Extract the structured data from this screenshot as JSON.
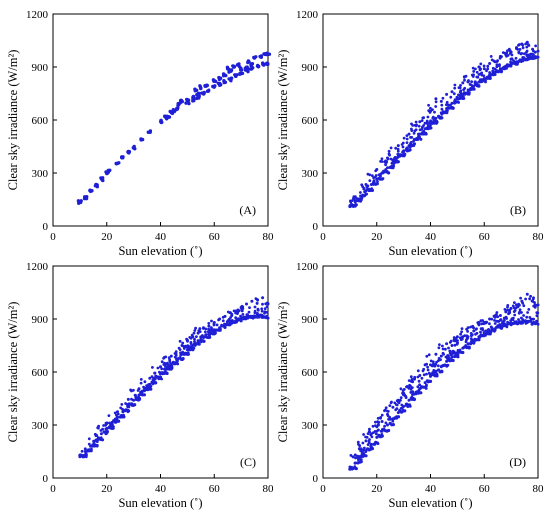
{
  "figure": {
    "marker_color": "#1f1fd6",
    "axis_color": "#000000",
    "background": "#ffffff"
  },
  "chart_data": [
    {
      "type": "scatter",
      "panel_label": "(A)",
      "xlabel": "Sun elevation (˚)",
      "ylabel": "Clear sky irradiance (W/m²)",
      "xlim": [
        0,
        80
      ],
      "ylim": [
        0,
        1200
      ],
      "xticks": [
        "0",
        "20",
        "40",
        "60",
        "80"
      ],
      "yticks": [
        "0",
        "300",
        "600",
        "900",
        "1200"
      ],
      "grid": false,
      "legend": "none",
      "pattern": "loops",
      "points": [
        [
          10,
          135
        ],
        [
          12,
          160
        ],
        [
          14,
          195
        ],
        [
          16,
          230
        ],
        [
          18,
          265
        ],
        [
          20,
          300
        ],
        [
          21,
          315
        ],
        [
          24,
          355
        ],
        [
          26,
          385
        ],
        [
          28,
          415
        ],
        [
          30,
          445
        ],
        [
          33,
          490
        ],
        [
          36,
          530
        ],
        [
          40,
          590
        ],
        [
          42,
          615
        ],
        [
          44,
          640
        ],
        [
          46,
          665
        ],
        [
          47,
          690
        ],
        [
          45,
          655
        ],
        [
          43,
          620
        ],
        [
          48,
          705
        ],
        [
          50,
          710
        ],
        [
          52,
          725
        ],
        [
          54,
          745
        ],
        [
          53,
          770
        ],
        [
          55,
          785
        ],
        [
          57,
          790
        ],
        [
          60,
          820
        ],
        [
          62,
          835
        ],
        [
          64,
          855
        ],
        [
          66,
          875
        ],
        [
          65,
          895
        ],
        [
          67,
          905
        ],
        [
          69,
          910
        ],
        [
          70,
          885
        ],
        [
          72,
          895
        ],
        [
          74,
          915
        ],
        [
          73,
          930
        ],
        [
          75,
          950
        ],
        [
          77,
          960
        ],
        [
          79,
          970
        ],
        [
          80,
          975
        ],
        [
          80,
          920
        ],
        [
          78,
          915
        ],
        [
          76,
          905
        ],
        [
          74,
          890
        ],
        [
          72,
          880
        ],
        [
          70,
          865
        ],
        [
          68,
          850
        ],
        [
          66,
          830
        ],
        [
          64,
          815
        ],
        [
          62,
          800
        ],
        [
          60,
          785
        ],
        [
          58,
          770
        ],
        [
          56,
          750
        ],
        [
          54,
          730
        ],
        [
          52,
          715
        ],
        [
          50,
          700
        ]
      ]
    },
    {
      "type": "scatter",
      "panel_label": "(B)",
      "xlabel": "Sun elevation (˚)",
      "ylabel": "Clear sky irradiance (W/m²)",
      "xlim": [
        0,
        80
      ],
      "ylim": [
        0,
        1200
      ],
      "xticks": [
        "0",
        "20",
        "40",
        "60",
        "80"
      ],
      "yticks": [
        "0",
        "300",
        "600",
        "900",
        "1200"
      ],
      "grid": false,
      "legend": "none",
      "pattern": "band",
      "points": [
        [
          10,
          110
        ],
        [
          12,
          140
        ],
        [
          14,
          170
        ],
        [
          16,
          200
        ],
        [
          18,
          235
        ],
        [
          20,
          265
        ],
        [
          22,
          300
        ],
        [
          24,
          330
        ],
        [
          26,
          360
        ],
        [
          28,
          395
        ],
        [
          30,
          425
        ],
        [
          32,
          455
        ],
        [
          34,
          490
        ],
        [
          36,
          520
        ],
        [
          38,
          550
        ],
        [
          40,
          580
        ],
        [
          42,
          610
        ],
        [
          44,
          640
        ],
        [
          46,
          665
        ],
        [
          48,
          695
        ],
        [
          50,
          720
        ],
        [
          52,
          745
        ],
        [
          54,
          770
        ],
        [
          56,
          790
        ],
        [
          58,
          815
        ],
        [
          60,
          835
        ],
        [
          62,
          855
        ],
        [
          64,
          870
        ],
        [
          66,
          890
        ],
        [
          68,
          905
        ],
        [
          70,
          915
        ],
        [
          72,
          930
        ],
        [
          74,
          940
        ],
        [
          76,
          945
        ],
        [
          78,
          950
        ],
        [
          80,
          955
        ],
        [
          12,
          165
        ],
        [
          16,
          235
        ],
        [
          20,
          320
        ],
        [
          24,
          385
        ],
        [
          28,
          455
        ],
        [
          32,
          520
        ],
        [
          36,
          590
        ],
        [
          40,
          650
        ],
        [
          44,
          705
        ],
        [
          48,
          760
        ],
        [
          52,
          810
        ],
        [
          56,
          855
        ],
        [
          60,
          890
        ],
        [
          64,
          930
        ],
        [
          68,
          970
        ],
        [
          70,
          985
        ],
        [
          72,
          1010
        ],
        [
          74,
          1030
        ],
        [
          76,
          1040
        ],
        [
          78,
          1000
        ],
        [
          80,
          990
        ],
        [
          42,
          720
        ],
        [
          46,
          745
        ],
        [
          58,
          900
        ],
        [
          62,
          920
        ],
        [
          66,
          960
        ]
      ]
    },
    {
      "type": "scatter",
      "panel_label": "(C)",
      "xlabel": "Sun elevation (˚)",
      "ylabel": "Clear sky irradiance (W/m²)",
      "xlim": [
        0,
        80
      ],
      "ylim": [
        0,
        1200
      ],
      "xticks": [
        "0",
        "20",
        "40",
        "60",
        "80"
      ],
      "yticks": [
        "0",
        "300",
        "600",
        "900",
        "1200"
      ],
      "grid": false,
      "legend": "none",
      "pattern": "band",
      "points": [
        [
          10,
          120
        ],
        [
          12,
          150
        ],
        [
          14,
          180
        ],
        [
          16,
          215
        ],
        [
          18,
          250
        ],
        [
          20,
          280
        ],
        [
          22,
          315
        ],
        [
          24,
          345
        ],
        [
          26,
          375
        ],
        [
          28,
          410
        ],
        [
          30,
          440
        ],
        [
          32,
          470
        ],
        [
          34,
          500
        ],
        [
          36,
          530
        ],
        [
          38,
          560
        ],
        [
          40,
          590
        ],
        [
          42,
          615
        ],
        [
          44,
          645
        ],
        [
          46,
          670
        ],
        [
          48,
          700
        ],
        [
          50,
          725
        ],
        [
          52,
          750
        ],
        [
          54,
          770
        ],
        [
          56,
          795
        ],
        [
          58,
          815
        ],
        [
          60,
          835
        ],
        [
          62,
          850
        ],
        [
          64,
          865
        ],
        [
          66,
          880
        ],
        [
          68,
          890
        ],
        [
          70,
          900
        ],
        [
          72,
          905
        ],
        [
          74,
          910
        ],
        [
          76,
          910
        ],
        [
          78,
          910
        ],
        [
          80,
          905
        ],
        [
          12,
          165
        ],
        [
          16,
          240
        ],
        [
          20,
          310
        ],
        [
          24,
          375
        ],
        [
          28,
          445
        ],
        [
          32,
          505
        ],
        [
          36,
          565
        ],
        [
          40,
          630
        ],
        [
          44,
          690
        ],
        [
          48,
          750
        ],
        [
          52,
          800
        ],
        [
          56,
          850
        ],
        [
          60,
          880
        ],
        [
          64,
          915
        ],
        [
          68,
          945
        ],
        [
          70,
          965
        ],
        [
          72,
          985
        ],
        [
          74,
          1000
        ],
        [
          76,
          1010
        ],
        [
          78,
          1020
        ],
        [
          80,
          985
        ],
        [
          50,
          780
        ],
        [
          54,
          820
        ],
        [
          58,
          860
        ],
        [
          62,
          900
        ],
        [
          66,
          935
        ]
      ]
    },
    {
      "type": "scatter",
      "panel_label": "(D)",
      "xlabel": "Sun elevation (˚)",
      "ylabel": "Clear sky irradiance (W/m²)",
      "xlim": [
        0,
        80
      ],
      "ylim": [
        0,
        1200
      ],
      "xticks": [
        "0",
        "20",
        "40",
        "60",
        "80"
      ],
      "yticks": [
        "0",
        "300",
        "600",
        "900",
        "1200"
      ],
      "grid": false,
      "legend": "none",
      "pattern": "wide-band",
      "points": [
        [
          10,
          50
        ],
        [
          12,
          85
        ],
        [
          14,
          120
        ],
        [
          16,
          155
        ],
        [
          18,
          190
        ],
        [
          20,
          230
        ],
        [
          22,
          265
        ],
        [
          24,
          300
        ],
        [
          26,
          335
        ],
        [
          28,
          370
        ],
        [
          30,
          405
        ],
        [
          32,
          440
        ],
        [
          34,
          475
        ],
        [
          36,
          505
        ],
        [
          38,
          540
        ],
        [
          40,
          575
        ],
        [
          42,
          600
        ],
        [
          44,
          630
        ],
        [
          46,
          660
        ],
        [
          48,
          685
        ],
        [
          50,
          710
        ],
        [
          52,
          735
        ],
        [
          54,
          760
        ],
        [
          56,
          780
        ],
        [
          58,
          800
        ],
        [
          60,
          815
        ],
        [
          62,
          830
        ],
        [
          64,
          845
        ],
        [
          66,
          855
        ],
        [
          68,
          865
        ],
        [
          70,
          870
        ],
        [
          72,
          875
        ],
        [
          74,
          880
        ],
        [
          76,
          880
        ],
        [
          78,
          875
        ],
        [
          80,
          870
        ],
        [
          12,
          130
        ],
        [
          16,
          210
        ],
        [
          20,
          290
        ],
        [
          24,
          360
        ],
        [
          28,
          440
        ],
        [
          32,
          510
        ],
        [
          36,
          580
        ],
        [
          40,
          640
        ],
        [
          44,
          690
        ],
        [
          48,
          750
        ],
        [
          52,
          800
        ],
        [
          56,
          850
        ],
        [
          60,
          880
        ],
        [
          64,
          910
        ],
        [
          68,
          940
        ],
        [
          70,
          960
        ],
        [
          72,
          980
        ],
        [
          74,
          1000
        ],
        [
          76,
          1040
        ],
        [
          78,
          1000
        ],
        [
          80,
          980
        ],
        [
          18,
          250
        ],
        [
          22,
          320
        ],
        [
          26,
          400
        ],
        [
          30,
          480
        ],
        [
          34,
          560
        ],
        [
          38,
          640
        ],
        [
          42,
          700
        ],
        [
          46,
          760
        ],
        [
          50,
          800
        ],
        [
          54,
          850
        ],
        [
          58,
          880
        ],
        [
          62,
          900
        ],
        [
          66,
          920
        ]
      ]
    }
  ]
}
